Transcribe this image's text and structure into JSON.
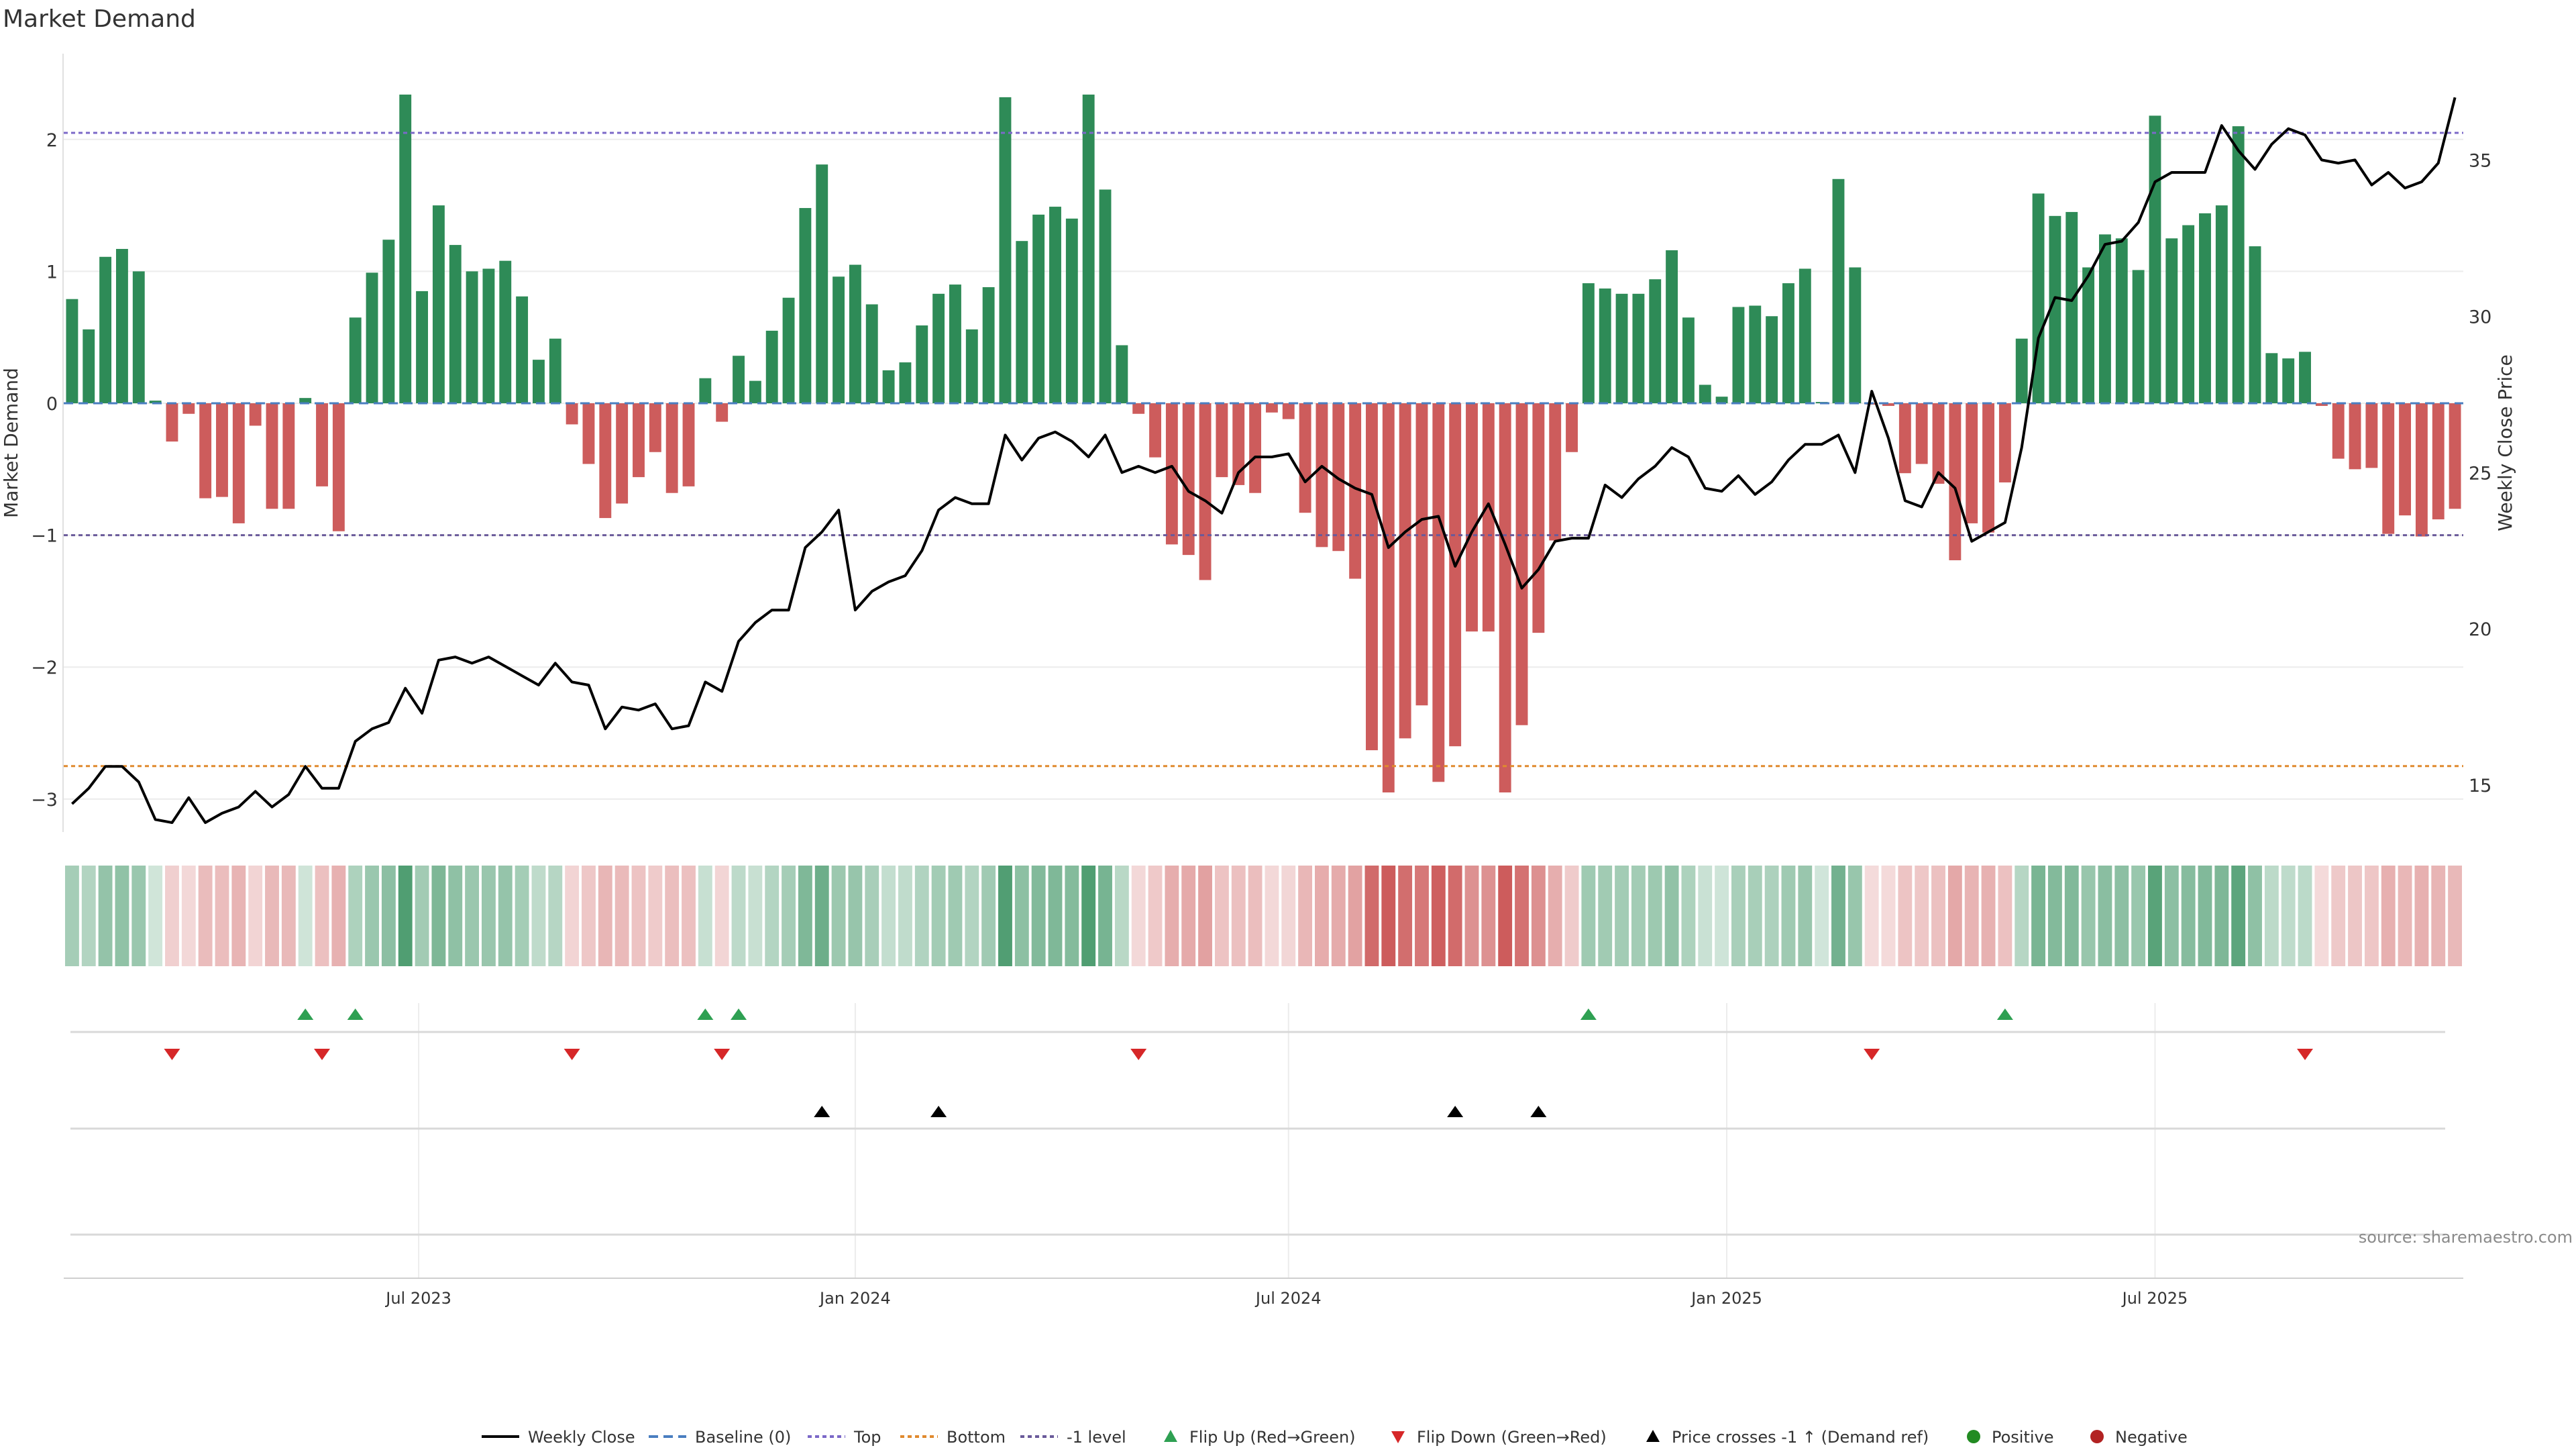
{
  "chart_data": {
    "type": "bar",
    "title": "Market Demand",
    "ylabel": "Market Demand",
    "y2label": "Weekly Close Price",
    "source": "source: sharemaestro.com",
    "ylim": [
      -3.25,
      2.65
    ],
    "y2lim": [
      13.5,
      38.4
    ],
    "yticks": [
      {
        "v": 2,
        "label": "2"
      },
      {
        "v": 1,
        "label": "1"
      },
      {
        "v": 0,
        "label": "0"
      },
      {
        "v": -1,
        "label": "−1"
      },
      {
        "v": -2,
        "label": "−2"
      },
      {
        "v": -3,
        "label": "−3"
      }
    ],
    "y2ticks": [
      {
        "v": 35,
        "label": "35"
      },
      {
        "v": 30,
        "label": "30"
      },
      {
        "v": 25,
        "label": "25"
      },
      {
        "v": 20,
        "label": "20"
      },
      {
        "v": 15,
        "label": "15"
      }
    ],
    "x_date_ticks": [
      {
        "week": 21.3,
        "label": "Jul 2023"
      },
      {
        "week": 47.5,
        "label": "Jan 2024"
      },
      {
        "week": 73.5,
        "label": "Jul 2024"
      },
      {
        "week": 99.8,
        "label": "Jan 2025"
      },
      {
        "week": 125.5,
        "label": "Jul 2025"
      }
    ],
    "reference_lines": {
      "top": 2.05,
      "bottom": -2.75,
      "minus_one": -1.0,
      "baseline": 0
    },
    "demand": [
      0.79,
      0.56,
      1.11,
      1.17,
      1.0,
      0.02,
      -0.29,
      -0.08,
      -0.72,
      -0.71,
      -0.91,
      -0.17,
      -0.8,
      -0.8,
      0.04,
      -0.63,
      -0.97,
      0.65,
      0.99,
      1.24,
      2.34,
      0.85,
      1.5,
      1.2,
      1.0,
      1.02,
      1.08,
      0.81,
      0.33,
      0.49,
      -0.16,
      -0.46,
      -0.87,
      -0.76,
      -0.56,
      -0.37,
      -0.68,
      -0.63,
      0.19,
      -0.14,
      0.36,
      0.17,
      0.55,
      0.8,
      1.48,
      1.81,
      0.96,
      1.05,
      0.75,
      0.25,
      0.31,
      0.59,
      0.83,
      0.9,
      0.56,
      0.88,
      2.32,
      1.23,
      1.43,
      1.49,
      1.4,
      2.34,
      1.62,
      0.44,
      -0.08,
      -0.41,
      -1.07,
      -1.15,
      -1.34,
      -0.56,
      -0.62,
      -0.68,
      -0.07,
      -0.12,
      -0.83,
      -1.09,
      -1.12,
      -1.33,
      -2.63,
      -2.95,
      -2.54,
      -2.29,
      -2.87,
      -2.6,
      -1.73,
      -1.73,
      -2.95,
      -2.44,
      -1.74,
      -1.04,
      -0.37,
      0.91,
      0.87,
      0.83,
      0.83,
      0.94,
      1.16,
      0.65,
      0.14,
      0.05,
      0.73,
      0.74,
      0.66,
      0.91,
      1.02,
      0.01,
      1.7,
      1.03,
      -0.01,
      -0.02,
      -0.53,
      -0.46,
      -0.61,
      -1.19,
      -0.91,
      -0.98,
      -0.6,
      0.49,
      1.59,
      1.42,
      1.45,
      1.03,
      1.28,
      1.25,
      1.01,
      2.18,
      1.25,
      1.35,
      1.44,
      1.5,
      2.1,
      1.19,
      0.38,
      0.34,
      0.39,
      -0.02,
      -0.42,
      -0.5,
      -0.49,
      -0.99,
      -0.85,
      -1.01,
      -0.88,
      -0.8
    ],
    "price": [
      14.4,
      14.9,
      15.6,
      15.6,
      15.1,
      13.9,
      13.8,
      14.6,
      13.8,
      14.1,
      14.3,
      14.8,
      14.3,
      14.7,
      15.6,
      14.9,
      14.9,
      16.4,
      16.8,
      17.0,
      18.1,
      17.3,
      19.0,
      19.1,
      18.9,
      19.1,
      18.8,
      18.5,
      18.2,
      18.9,
      18.3,
      18.2,
      16.8,
      17.5,
      17.4,
      17.6,
      16.8,
      16.9,
      18.3,
      18.0,
      19.6,
      20.2,
      20.6,
      20.6,
      22.6,
      23.1,
      23.8,
      20.6,
      21.2,
      21.5,
      21.7,
      22.5,
      23.8,
      24.2,
      24.0,
      24.0,
      26.2,
      25.4,
      26.1,
      26.3,
      26.0,
      25.5,
      26.2,
      25.0,
      25.2,
      25.0,
      25.2,
      24.4,
      24.1,
      23.7,
      25.0,
      25.5,
      25.5,
      25.6,
      24.7,
      25.2,
      24.8,
      24.5,
      24.3,
      22.6,
      23.1,
      23.5,
      23.6,
      22.0,
      23.1,
      24.0,
      22.7,
      21.3,
      21.9,
      22.8,
      22.9,
      22.9,
      24.6,
      24.2,
      24.8,
      25.2,
      25.8,
      25.5,
      24.5,
      24.4,
      24.9,
      24.3,
      24.7,
      25.4,
      25.9,
      25.9,
      26.2,
      25.0,
      27.6,
      26.1,
      24.1,
      23.9,
      25.0,
      24.5,
      22.8,
      23.1,
      23.4,
      25.8,
      29.3,
      30.6,
      30.5,
      31.3,
      32.3,
      32.4,
      33.0,
      34.3,
      34.6,
      34.6,
      34.6,
      36.1,
      35.3,
      34.7,
      35.5,
      36.0,
      35.8,
      35.0,
      34.9,
      35.0,
      34.2,
      34.6,
      34.1,
      34.3,
      34.9,
      37.0
    ],
    "flip_up_weeks": [
      14,
      17,
      38,
      40,
      91,
      116
    ],
    "flip_down_weeks": [
      6,
      15,
      30,
      39,
      64,
      108,
      134
    ],
    "price_cross_weeks": [
      45,
      52,
      83,
      88
    ],
    "legend": [
      "Weekly Close",
      "Baseline (0)",
      "Top",
      "Bottom",
      "-1 level",
      "Flip Up (Red→Green)",
      "Flip Down (Green→Red)",
      "Price crosses -1 ↑ (Demand ref)",
      "Positive",
      "Negative"
    ],
    "colors": {
      "positive": "#2e8b57",
      "negative": "#cd5c5c",
      "price_line": "#000000",
      "baseline": "#4a7ec0",
      "top": "#7b68c8",
      "bottom": "#e08a2e",
      "minus_one": "#6a5a9a",
      "flip_up": "#2ea052",
      "flip_down": "#d62728",
      "cross": "#000000",
      "pos_marker": "#228b22",
      "neg_marker": "#b22222"
    }
  }
}
